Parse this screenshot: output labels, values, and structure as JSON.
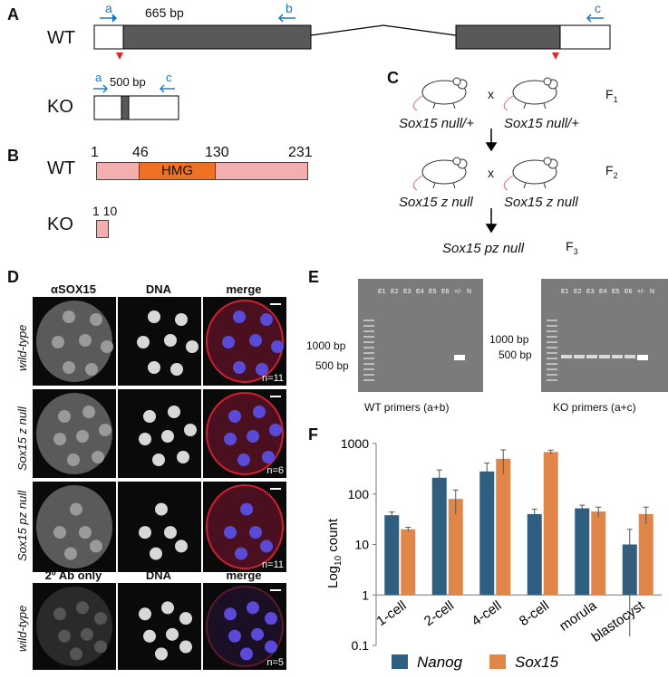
{
  "panels": {
    "a": "A",
    "b": "B",
    "c": "C",
    "d": "D",
    "e": "E",
    "f": "F"
  },
  "panelA": {
    "wt": "WT",
    "ko": "KO",
    "wt_size": "665 bp",
    "ko_size": "500 bp",
    "primer_a": "a",
    "primer_b": "b",
    "primer_c": "c"
  },
  "panelB": {
    "wt": "WT",
    "ko": "KO",
    "domain": "HMG",
    "pos1": "1",
    "pos46": "46",
    "pos130": "130",
    "pos231": "231",
    "ko_pos": "1 10"
  },
  "panelC": {
    "cross": "x",
    "gen1_left": "Sox15 null/+",
    "gen1_right": "Sox15 null/+",
    "gen1": "F",
    "gen2_left": "Sox15 z null",
    "gen2_right": "Sox15 z null",
    "gen2": "F",
    "offspring": "Sox15 pz null",
    "gen3": "F",
    "sub1": "1",
    "sub2": "2",
    "sub3": "3"
  },
  "panelD": {
    "col1": "αSOX15",
    "col2": "DNA",
    "col3": "merge",
    "col1_alt": "2º Ab only",
    "rows": [
      "wild-type",
      "Sox15 z null",
      "Sox15 pz null",
      "wild-type"
    ],
    "n": [
      "n=11",
      "n=6",
      "n=11",
      "n=5"
    ]
  },
  "panelE": {
    "wt_lanes": [
      "E1",
      "E2",
      "E3",
      "E4",
      "E5",
      "E6",
      "+/-",
      "N"
    ],
    "ko_lanes": [
      "E1",
      "E2",
      "E3",
      "E4",
      "E5",
      "E6",
      "+/-",
      "N"
    ],
    "bp1000": "1000 bp",
    "bp500": "500 bp",
    "wt_caption": "WT primers (a+b)",
    "ko_caption": "KO primers (a+c)"
  },
  "chart_data": {
    "type": "bar",
    "scale": "log",
    "ylabel": "Log10 count",
    "ylabel_main": "Log",
    "ylabel_sub": "10",
    "ylabel_rest": "count",
    "ylim": [
      0.1,
      1000
    ],
    "yticks": [
      "0.1",
      "1",
      "10",
      "100",
      "1000"
    ],
    "categories": [
      "1-cell",
      "2-cell",
      "4-cell",
      "8-cell",
      "morula",
      "blastocyst"
    ],
    "series": [
      {
        "name": "Nanog",
        "color": "#2e5e80",
        "values": [
          38,
          210,
          280,
          40,
          52,
          10
        ],
        "err": [
          6,
          90,
          130,
          10,
          8,
          10
        ]
      },
      {
        "name": "Sox15",
        "color": "#e08648",
        "values": [
          20,
          80,
          500,
          680,
          45,
          40
        ],
        "err": [
          2,
          40,
          250,
          60,
          10,
          15
        ]
      }
    ]
  },
  "colors": {
    "box": "#595959",
    "koblock": "#f3aeae",
    "hmg": "#ee7124",
    "primer": "#1a78c2",
    "marker": "#e1252b",
    "nanog": "#2e5e80",
    "sox15": "#e08648"
  }
}
